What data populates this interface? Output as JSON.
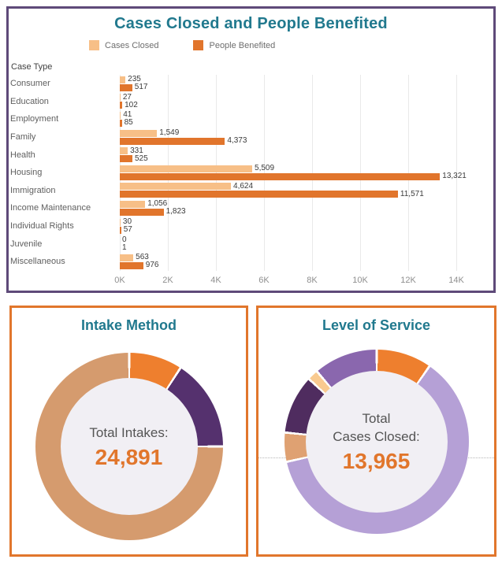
{
  "colors": {
    "teal_title": "#21798e",
    "top_panel_border": "#5e4a79",
    "bottom_panel_border": "#e1762c",
    "gridline": "#e9e9e9",
    "donut_hole": "#f1eff4",
    "center_value_orange": "#e1762c"
  },
  "chart_data": [
    {
      "type": "bar",
      "orientation": "horizontal",
      "title": "Cases Closed and People Benefited",
      "axis_label": "Case Type",
      "categories": [
        "Consumer",
        "Education",
        "Employment",
        "Family",
        "Health",
        "Housing",
        "Immigration",
        "Income Maintenance",
        "Individual Rights",
        "Juvenile",
        "Miscellaneous"
      ],
      "series": [
        {
          "name": "Cases Closed",
          "color": "#f7bf87",
          "values": [
            235,
            27,
            41,
            1549,
            331,
            5509,
            4624,
            1056,
            30,
            0,
            563
          ]
        },
        {
          "name": "People Benefited",
          "color": "#e1752c",
          "values": [
            517,
            102,
            85,
            4373,
            525,
            13321,
            11571,
            1823,
            57,
            1,
            976
          ]
        }
      ],
      "xlim": [
        0,
        14000
      ],
      "x_ticks": [
        "0K",
        "2K",
        "4K",
        "6K",
        "8K",
        "10K",
        "12K",
        "14K"
      ],
      "grid": true,
      "legend_position": "top"
    },
    {
      "type": "pie",
      "subtype": "donut",
      "title": "Intake Method",
      "center_label": "Total Intakes:",
      "center_value": "24,891",
      "slices": [
        {
          "name": "orange-segment",
          "color": "#ee7f2e",
          "pct": 9.2
        },
        {
          "name": "dark-purple-segment",
          "color": "#55316e",
          "pct": 15.8
        },
        {
          "name": "tan-segment",
          "color": "#d59b6e",
          "pct": 75.0
        }
      ]
    },
    {
      "type": "pie",
      "subtype": "donut",
      "title": "Level of Service",
      "center_label_lines": [
        "Total",
        "Cases Closed:"
      ],
      "center_value": "13,965",
      "slices": [
        {
          "name": "orange-segment",
          "color": "#ee7f2e",
          "pct": 9.7
        },
        {
          "name": "light-lavender-segment",
          "color": "#b5a0d6",
          "pct": 61.8
        },
        {
          "name": "tan-segment",
          "color": "#dfa172",
          "pct": 5.1
        },
        {
          "name": "dark-purple-segment",
          "color": "#4f2c5f",
          "pct": 10.3
        },
        {
          "name": "cream-segment",
          "color": "#f9ca90",
          "pct": 1.9
        },
        {
          "name": "medium-purple-segment",
          "color": "#8a67ae",
          "pct": 11.2
        }
      ]
    }
  ]
}
